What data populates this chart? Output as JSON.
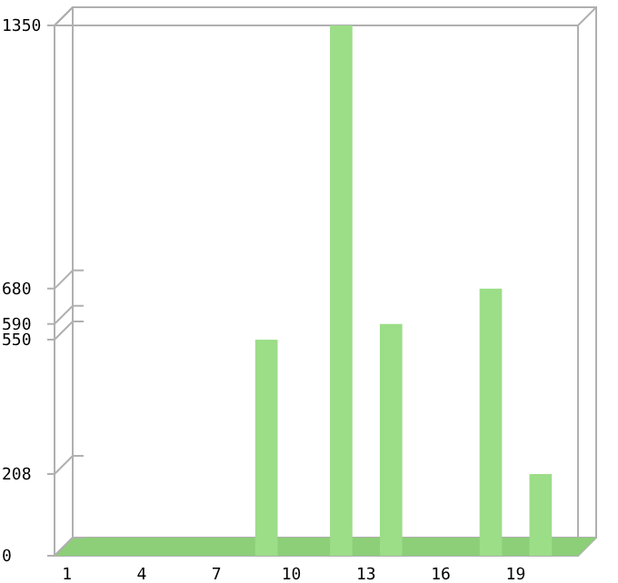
{
  "chart_data": {
    "type": "bar",
    "categories": [
      "1",
      null,
      null,
      "4",
      null,
      null,
      "7",
      null,
      null,
      "10",
      null,
      null,
      "13",
      null,
      null,
      "16",
      null,
      null,
      "19",
      null,
      null
    ],
    "values": [
      0,
      0,
      0,
      0,
      0,
      0,
      0,
      0,
      550,
      0,
      0,
      1350,
      0,
      590,
      0,
      0,
      0,
      680,
      0,
      208,
      0
    ],
    "color": "#9cdd88",
    "ylim": [
      0,
      1350
    ],
    "yticks": [
      0,
      208,
      550,
      590,
      680,
      1350
    ],
    "grid": false
  }
}
